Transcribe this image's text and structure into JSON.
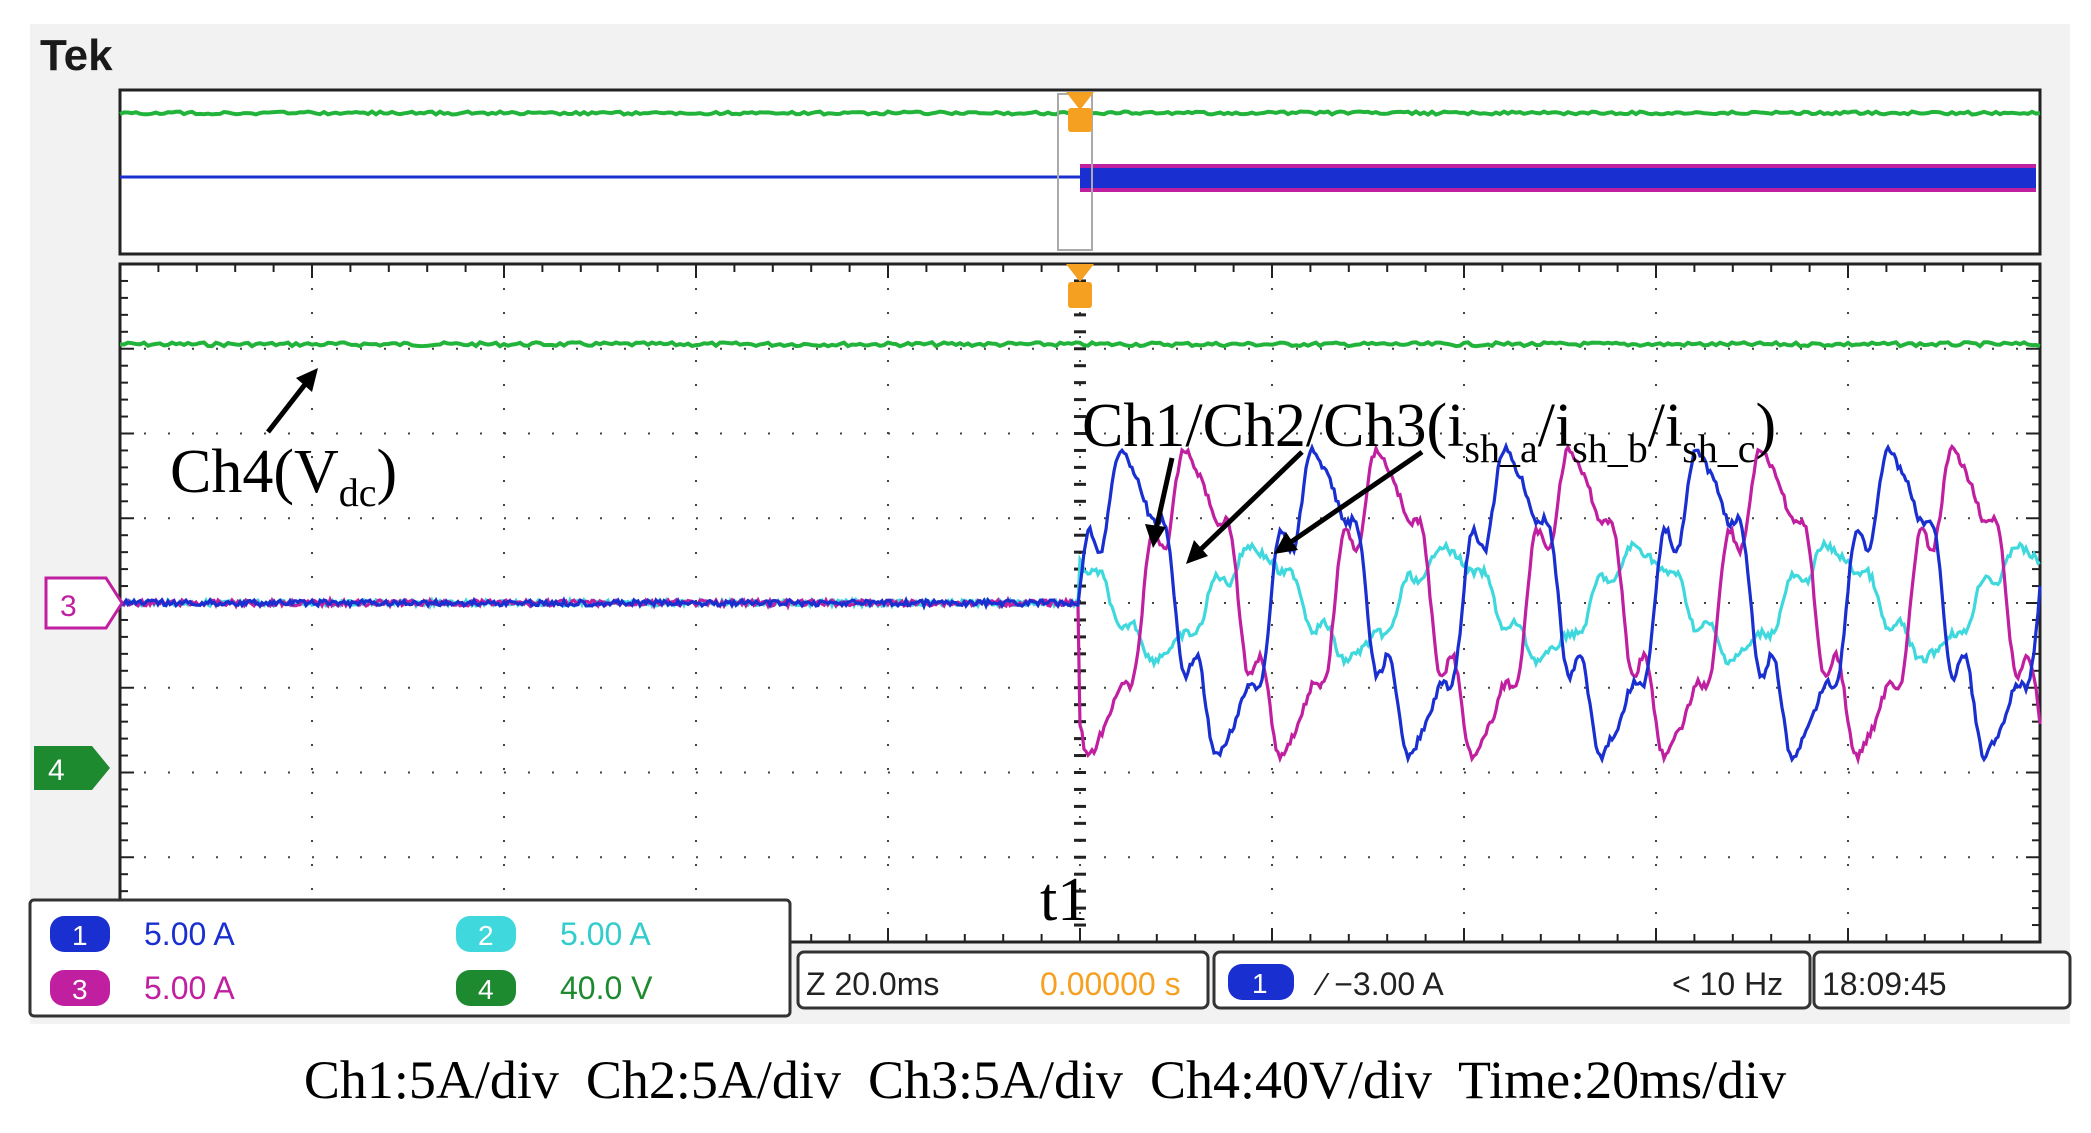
{
  "brand": "Tek",
  "channel_readouts": [
    {
      "num": "1",
      "value": "5.00 A",
      "color": "#1a2fd0",
      "text_color": "#1a2fd0"
    },
    {
      "num": "2",
      "value": "5.00 A",
      "color": "#3fd8dd",
      "text_color": "#33cccc"
    },
    {
      "num": "3",
      "value": "5.00 A",
      "color": "#c020a0",
      "text_color": "#c020a0"
    },
    {
      "num": "4",
      "value": "40.0 V",
      "color": "#1e8a30",
      "text_color": "#1e8a30"
    }
  ],
  "timebase": {
    "zoom": "Z 20.0ms",
    "offset": "0.00000 s"
  },
  "trigger": {
    "source": "1",
    "slope_level": "∕ −3.00 A",
    "freq": "< 10 Hz"
  },
  "clock": "18:09:45",
  "markers": {
    "ch3": "3",
    "ch4": "4"
  },
  "annotations": {
    "vdc_main": "Ch4(V",
    "vdc_sub": "dc",
    "vdc_close": ")",
    "currents_prefix": "Ch1/Ch2/Ch3(i",
    "sub_a": "sh_a",
    "sep1": "/i",
    "sub_b": "sh_b",
    "sep2": "/i",
    "sub_c": "sh_c",
    "currents_close": ")",
    "t1": "t1"
  },
  "caption": "Ch1:5A/div  Ch2:5A/div  Ch3:5A/div  Ch4:40V/div  Time:20ms/div",
  "chart_data": {
    "type": "line",
    "xlabel": "",
    "ylabel": "",
    "x_divisions": 10,
    "y_divisions": 8,
    "time_per_div_ms": 20,
    "event_t1_div": 5,
    "series": [
      {
        "name": "Ch1",
        "quantity": "i_sh_a",
        "scale": "5A/div",
        "color": "#1a2fd0",
        "amplitude_A": 8,
        "phase_deg": 0,
        "before_t1_A": 0
      },
      {
        "name": "Ch2",
        "quantity": "i_sh_b",
        "scale": "5A/div",
        "color": "#3fd8dd",
        "amplitude_A": 3,
        "phase_deg": 120,
        "before_t1_A": 0
      },
      {
        "name": "Ch3",
        "quantity": "i_sh_c",
        "scale": "5A/div",
        "color": "#c020a0",
        "amplitude_A": 8,
        "phase_deg": 240,
        "before_t1_A": 0
      },
      {
        "name": "Ch4",
        "quantity": "V_dc",
        "scale": "40V/div",
        "color": "#22b43a",
        "value_div_above_ch4_ref": 5
      }
    ],
    "current_period_ms": 20,
    "overview_trace": {
      "before_t1": "flat",
      "after_t1": "switching band"
    }
  }
}
